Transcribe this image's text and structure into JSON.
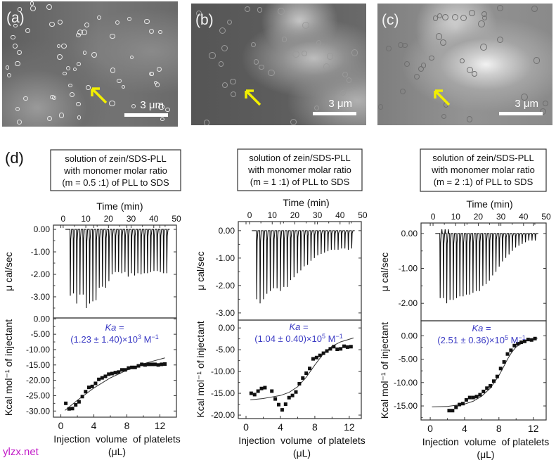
{
  "sem_images": [
    {
      "label": "(a)",
      "scale_bar": "3 μm"
    },
    {
      "label": "(b)",
      "scale_bar": "3 μm"
    },
    {
      "label": "(c)",
      "scale_bar": "3 μm"
    }
  ],
  "panel_d_label": "(d)",
  "watermark": "ylzx.net",
  "colors": {
    "ka_text": "#3b3bc4",
    "arrow": "#f2ef00",
    "watermark": "#c21ac8"
  },
  "chart_data": [
    {
      "type": "line+scatter",
      "box_lines": [
        "solution  of  zein/SDS-PLL",
        "with  monomer molar  ratio",
        "(m = 0.5 :1) of PLL to SDS"
      ],
      "raw": {
        "xlabel": "Time (min)",
        "ylabel": "μ cal/sec",
        "xlim": [
          -4.3,
          50
        ],
        "ylim": [
          -3.94,
          0.19
        ],
        "xticks": [
          0,
          10,
          20,
          30,
          40,
          50
        ],
        "yticks": [
          0,
          -1,
          -2,
          -3
        ],
        "ytick_labels": [
          "0.00",
          "-1.00",
          "-2.00",
          "-3.00"
        ],
        "injection_start_min": 3,
        "injection_interval_min": 1.42,
        "peaks": [
          -2.95,
          -2.85,
          -3.3,
          -2.9,
          -2.9,
          -3.5,
          -3.3,
          -3.2,
          -3.15,
          -2.6,
          -2.55,
          -2.6,
          -2.3,
          -2.0,
          -1.9,
          -1.9,
          -1.95,
          -1.9,
          -2.1,
          -1.95,
          -2.05,
          -1.95,
          -2.0,
          -1.95,
          -1.95,
          -1.9,
          -1.85,
          -1.85,
          -1.9,
          -1.95,
          -1.95
        ]
      },
      "isotherm": {
        "xlabel": "Injection  volume  of platelets",
        "xlabel2": "(μL)",
        "ylabel": "Kcal mol⁻¹ of injectant",
        "xlim": [
          -0.9,
          14
        ],
        "ylim": [
          -32,
          0.3
        ],
        "xticks": [
          0,
          4,
          8,
          12
        ],
        "yticks": [
          0,
          -5,
          -10,
          -15,
          -20,
          -25,
          -30
        ],
        "ytick_labels": [
          "0.00",
          "-5.00",
          "-10.00",
          "-15.00",
          "-20.00",
          "-25.00",
          "-30.00"
        ],
        "points": [
          [
            0.6,
            -27.5
          ],
          [
            1.0,
            -29.3
          ],
          [
            1.4,
            -29.2
          ],
          [
            1.8,
            -28
          ],
          [
            2.2,
            -27
          ],
          [
            2.6,
            -25.3
          ],
          [
            3.0,
            -23.7
          ],
          [
            3.4,
            -22.3
          ],
          [
            3.8,
            -22
          ],
          [
            4.2,
            -21
          ],
          [
            4.6,
            -19.7
          ],
          [
            5.0,
            -19.2
          ],
          [
            5.4,
            -18.7
          ],
          [
            5.8,
            -18
          ],
          [
            6.2,
            -17.8
          ],
          [
            6.6,
            -17.5
          ],
          [
            7.0,
            -17.3
          ],
          [
            7.4,
            -16.6
          ],
          [
            7.8,
            -16.6
          ],
          [
            8.2,
            -16
          ],
          [
            8.6,
            -15.8
          ],
          [
            9.0,
            -15.8
          ],
          [
            9.4,
            -15.3
          ],
          [
            9.8,
            -14.8
          ],
          [
            10.2,
            -15
          ],
          [
            10.6,
            -14.8
          ],
          [
            11.0,
            -14.8
          ],
          [
            11.4,
            -14.8
          ],
          [
            11.8,
            -15
          ],
          [
            12.2,
            -14.8
          ],
          [
            12.6,
            -14.7
          ]
        ],
        "fit": [
          [
            0.5,
            -29.8
          ],
          [
            2,
            -26.5
          ],
          [
            4,
            -22.5
          ],
          [
            6,
            -19.2
          ],
          [
            8,
            -16.7
          ],
          [
            10,
            -14.6
          ],
          [
            12.6,
            -12.7
          ]
        ],
        "ka_label": "Ka",
        "ka_eq": " =",
        "ka_value": "(1.23 ± 1.40)×10",
        "ka_exp": "3",
        "ka_unit": " M",
        "ka_unit_exp": "−1"
      }
    },
    {
      "type": "line+scatter",
      "box_lines": [
        "solution  of  zein/SDS-PLL",
        "with monomer molar ratio",
        "(m = 1 :1) of PLL to SDS"
      ],
      "raw": {
        "xlabel": "Time (min)",
        "ylabel": "μ cal/sec",
        "xlim": [
          -5,
          49.4
        ],
        "ylim": [
          -3.26,
          0.33
        ],
        "xticks": [
          0,
          10,
          20,
          30,
          40,
          50
        ],
        "yticks": [
          0,
          -1,
          -2,
          -3
        ],
        "ytick_labels": [
          "0.00",
          "-1.00",
          "-2.00",
          "-3.00"
        ],
        "injection_start_min": 3,
        "injection_interval_min": 1.5,
        "peaks": [
          -2.5,
          -2.65,
          -2.5,
          -2.3,
          -2.2,
          -2.1,
          -2.1,
          -2.2,
          -2.05,
          -2.05,
          -1.8,
          -1.7,
          -1.55,
          -1.45,
          -1.3,
          -1.25,
          -1.1,
          -1.0,
          -0.9,
          -0.85,
          -0.8,
          -0.75,
          -0.7,
          -0.7,
          -0.7,
          -0.65,
          -0.65,
          -0.7,
          -0.65
        ]
      },
      "isotherm": {
        "xlabel": "Injection  volume  of platelets",
        "xlabel2": "(μL)",
        "ylabel": "Kcal mol⁻¹ of injectant",
        "xlim": [
          -0.9,
          13.4
        ],
        "ylim": [
          -20.8,
          1.8
        ],
        "xticks": [
          0,
          4,
          8,
          12
        ],
        "yticks": [
          0,
          -5,
          -10,
          -15,
          -20
        ],
        "ytick_labels": [
          "0.00",
          "-5.00",
          "-10.00",
          "-15.00",
          "-20.00"
        ],
        "points": [
          [
            0.6,
            -15
          ],
          [
            1.0,
            -15.3
          ],
          [
            1.4,
            -14.5
          ],
          [
            1.8,
            -13.9
          ],
          [
            2.2,
            -13.7
          ],
          [
            3.0,
            -14.5
          ],
          [
            3.4,
            -16.3
          ],
          [
            3.8,
            -17.6
          ],
          [
            4.2,
            -18.8
          ],
          [
            4.6,
            -17.5
          ],
          [
            5.0,
            -16
          ],
          [
            5.4,
            -15.5
          ],
          [
            5.8,
            -14.7
          ],
          [
            6.2,
            -12.8
          ],
          [
            6.6,
            -11.5
          ],
          [
            7.0,
            -10.4
          ],
          [
            7.4,
            -9.3
          ],
          [
            7.8,
            -7.1
          ],
          [
            8.2,
            -6.8
          ],
          [
            8.6,
            -6.3
          ],
          [
            9.0,
            -5.8
          ],
          [
            9.4,
            -5.3
          ],
          [
            9.8,
            -4.8
          ],
          [
            10.2,
            -4.3
          ],
          [
            10.6,
            -4.9
          ],
          [
            11.0,
            -4.8
          ],
          [
            11.4,
            -4.2
          ],
          [
            11.8,
            -4.4
          ],
          [
            12.2,
            -4.3
          ]
        ],
        "fit": [
          [
            0.5,
            -16.5
          ],
          [
            2,
            -16.2
          ],
          [
            4,
            -15.5
          ],
          [
            5,
            -14.8
          ],
          [
            6,
            -13.5
          ],
          [
            7,
            -11.3
          ],
          [
            8,
            -8.5
          ],
          [
            9,
            -5.9
          ],
          [
            10,
            -4.2
          ],
          [
            11,
            -3.2
          ],
          [
            12.5,
            -2.3
          ]
        ],
        "ka_label": "Ka",
        "ka_eq": " =",
        "ka_value": "(1.04 ± 0.40)×10",
        "ka_exp": "5",
        "ka_unit": " M",
        "ka_unit_exp": "−1"
      }
    },
    {
      "type": "line+scatter",
      "box_lines": [
        "solution  of  zein/SDS-PLL",
        "with monomer molar ratio",
        "(m = 2 :1) of PLL to SDS"
      ],
      "raw": {
        "xlabel": "Time (min)",
        "ylabel": "μ cal/sec",
        "xlim": [
          -5.3,
          50
        ],
        "ylim": [
          -2.5,
          0.3
        ],
        "xticks": [
          0,
          10,
          20,
          30,
          40,
          50
        ],
        "yticks": [
          0,
          -1,
          -2
        ],
        "ytick_labels": [
          "0.00",
          "-1.00",
          "-2.00"
        ],
        "injection_start_min": 3,
        "injection_interval_min": 1.45,
        "peaks": [
          -1.85,
          -1.85,
          -2.0,
          -1.9,
          -1.9,
          -1.85,
          -1.8,
          -1.8,
          -1.75,
          -1.75,
          -1.7,
          -1.65,
          -1.65,
          -1.5,
          -1.45,
          -1.35,
          -1.2,
          -1.1,
          -0.95,
          -0.8,
          -0.7,
          -0.6,
          -0.5,
          -0.4,
          -0.35,
          -0.3,
          -0.25,
          -0.2,
          -0.2,
          -0.2
        ]
      },
      "isotherm": {
        "xlabel": "Injection  volume  of platelets",
        "xlabel2": "(μL)",
        "ylabel": "Kcal mol⁻¹ of injectant",
        "xlim": [
          -1.07,
          13.5
        ],
        "ylim": [
          -18,
          3.2
        ],
        "xticks": [
          0,
          4,
          8,
          12
        ],
        "yticks": [
          0,
          -5,
          -10,
          -15
        ],
        "ytick_labels": [
          "0.00",
          "-5.00",
          "-10.00",
          "-15.00"
        ],
        "points": [
          [
            2.2,
            -16
          ],
          [
            2.6,
            -16
          ],
          [
            3.0,
            -15.3
          ],
          [
            3.4,
            -14.7
          ],
          [
            3.8,
            -14.5
          ],
          [
            4.2,
            -13.7
          ],
          [
            4.6,
            -13.2
          ],
          [
            5.0,
            -13.2
          ],
          [
            5.4,
            -13
          ],
          [
            5.8,
            -12.6
          ],
          [
            6.2,
            -11.9
          ],
          [
            6.6,
            -11.2
          ],
          [
            7.0,
            -10.7
          ],
          [
            7.4,
            -9.7
          ],
          [
            7.8,
            -8.7
          ],
          [
            8.2,
            -7
          ],
          [
            8.6,
            -5.6
          ],
          [
            9.0,
            -3.9
          ],
          [
            9.4,
            -3.1
          ],
          [
            9.8,
            -2.1
          ],
          [
            10.2,
            -1.7
          ],
          [
            10.6,
            -1.4
          ],
          [
            11.0,
            -1.2
          ],
          [
            11.4,
            -0.8
          ],
          [
            11.8,
            -0.9
          ],
          [
            12.2,
            -0.6
          ]
        ],
        "fit": [
          [
            0.2,
            -15.2
          ],
          [
            2,
            -15.1
          ],
          [
            4,
            -14.6
          ],
          [
            5,
            -14
          ],
          [
            6,
            -12.9
          ],
          [
            7,
            -11.2
          ],
          [
            8,
            -8.5
          ],
          [
            8.5,
            -6.8
          ],
          [
            9,
            -5
          ],
          [
            9.5,
            -3.5
          ],
          [
            10,
            -2.4
          ],
          [
            11,
            -1.2
          ],
          [
            12.5,
            -0.5
          ]
        ],
        "ka_label": "Ka",
        "ka_eq": " =",
        "ka_value": "(2.51 ± 0.36)×10",
        "ka_exp": "5",
        "ka_unit": " M",
        "ka_unit_exp": "−1"
      }
    }
  ]
}
